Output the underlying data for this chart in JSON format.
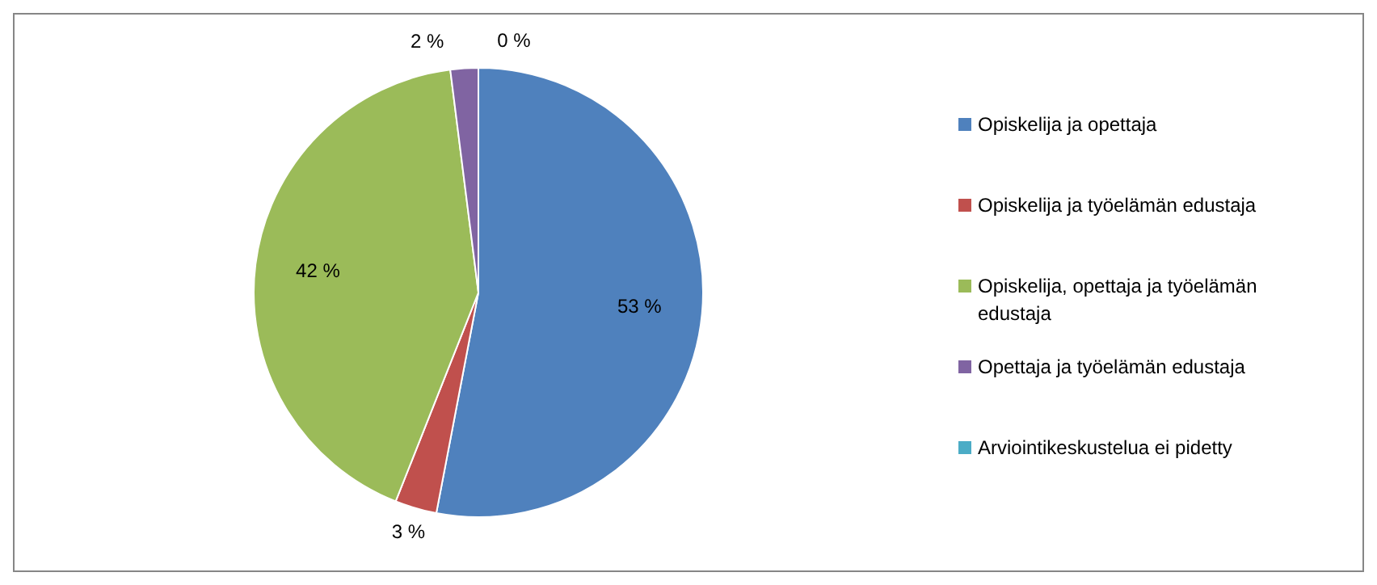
{
  "chart_data": {
    "type": "pie",
    "categories": [
      "Opiskelija ja opettaja",
      "Opiskelija ja työelämän edustaja",
      "Opiskelija, opettaja ja työelämän edustaja",
      "Opettaja ja työelämän edustaja",
      "Arviointikeskustelua ei pidetty"
    ],
    "values": [
      53,
      3,
      42,
      2,
      0
    ],
    "colors": [
      "#4f81bd",
      "#c0504d",
      "#9bbb59",
      "#8064a2",
      "#4bacc6"
    ],
    "value_labels": [
      "53 %",
      "3 %",
      "42 %",
      "2 %",
      "0 %"
    ],
    "legend": "right"
  }
}
